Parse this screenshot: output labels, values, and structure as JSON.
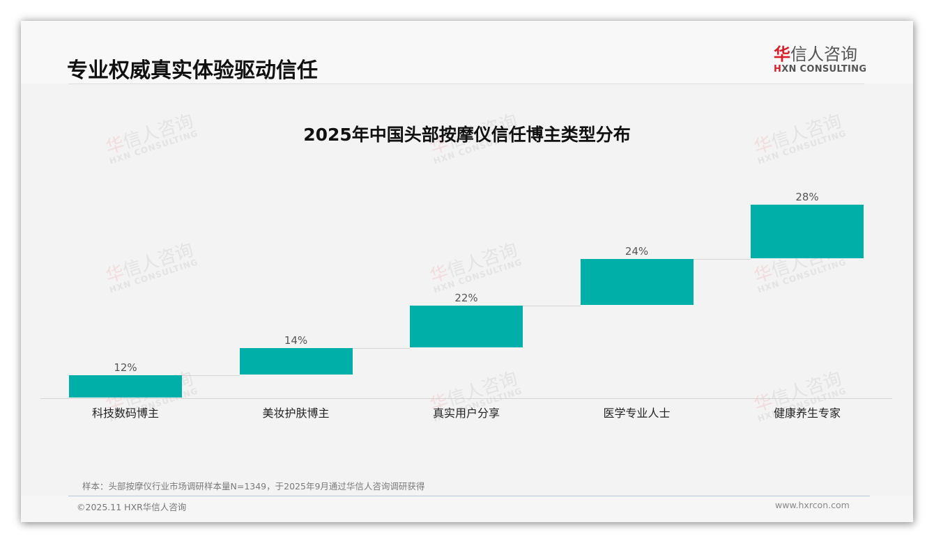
{
  "header": {
    "title": "专业权威真实体验驱动信任",
    "logo": {
      "cn_accent": "华",
      "cn_rest": "信人咨询",
      "en_accent": "H",
      "en_rest": "XN CONSULTING"
    }
  },
  "watermark": {
    "cn_accent": "华",
    "cn_rest": "信人咨询",
    "en": "HXN CONSULTING"
  },
  "chart_data": {
    "type": "bar",
    "subtype": "waterfall",
    "title": "2025年中国头部按摩仪信任博主类型分布",
    "categories": [
      "科技数码博主",
      "美妆护肤博主",
      "真实用户分享",
      "医学专业人士",
      "健康养生专家"
    ],
    "values": [
      12,
      14,
      22,
      24,
      28
    ],
    "value_labels": [
      "12%",
      "14%",
      "22%",
      "24%",
      "28%"
    ],
    "cumulative": [
      12,
      26,
      48,
      72,
      100
    ],
    "unit": "%",
    "xlabel": "",
    "ylabel": "",
    "ylim": [
      0,
      100
    ],
    "grid": false,
    "legend": null,
    "bar_color": "#00afa8"
  },
  "footer": {
    "source_note": "样本：头部按摩仪行业市场调研样本量N=1349，于2025年9月通过华信人咨询调研获得",
    "copyright": "©2025.11 HXR华信人咨询",
    "website": "www.hxrcon.com"
  }
}
